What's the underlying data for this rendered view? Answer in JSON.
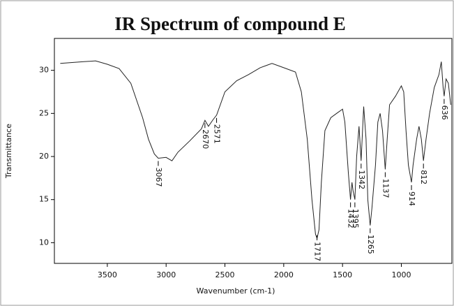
{
  "chart_data": {
    "type": "line",
    "title": "IR Spectrum of compound E",
    "xlabel": "Wavenumber (cm-1)",
    "ylabel": "Transmittance",
    "x": [
      3900,
      3700,
      3600,
      3500,
      3400,
      3300,
      3200,
      3150,
      3100,
      3067,
      3000,
      2950,
      2900,
      2800,
      2700,
      2670,
      2640,
      2600,
      2571,
      2500,
      2400,
      2300,
      2200,
      2100,
      2000,
      1900,
      1850,
      1800,
      1760,
      1730,
      1717,
      1700,
      1680,
      1650,
      1600,
      1550,
      1500,
      1480,
      1450,
      1432,
      1420,
      1410,
      1395,
      1380,
      1360,
      1342,
      1320,
      1300,
      1285,
      1265,
      1250,
      1220,
      1200,
      1180,
      1160,
      1137,
      1120,
      1100,
      1050,
      1000,
      980,
      960,
      940,
      914,
      900,
      870,
      850,
      830,
      812,
      790,
      760,
      720,
      680,
      660,
      645,
      636,
      620,
      600,
      580
    ],
    "y": [
      30.8,
      31,
      31.1,
      30.7,
      30.2,
      28.5,
      24.5,
      22,
      20.3,
      19.8,
      19.9,
      19.5,
      20.5,
      21.8,
      23.2,
      24.2,
      23.5,
      24.3,
      24.8,
      27.5,
      28.8,
      29.5,
      30.3,
      30.8,
      30.3,
      29.8,
      27.5,
      22,
      15,
      11,
      10.5,
      11.5,
      17,
      23,
      24.5,
      25,
      25.5,
      24,
      18,
      15,
      17,
      16,
      15,
      20,
      23.5,
      19.5,
      25.8,
      22,
      15,
      12,
      14,
      19,
      24,
      25,
      23,
      18.5,
      22,
      26,
      27,
      28.2,
      27.5,
      23,
      19,
      17,
      19,
      22,
      23.5,
      22,
      19.5,
      22,
      25,
      28,
      29.5,
      31,
      28,
      27,
      29,
      28.5,
      26
    ],
    "color": "#222222",
    "peaks": [
      3067,
      2670,
      2571,
      1717,
      1432,
      1395,
      1342,
      1265,
      1137,
      914,
      812,
      636
    ],
    "xlim": [
      3950,
      570
    ],
    "ylim": [
      7.6,
      33.7
    ],
    "xticks": [
      3500,
      3000,
      2500,
      2000,
      1500,
      1000
    ],
    "yticks": [
      10,
      15,
      20,
      25,
      30
    ]
  }
}
